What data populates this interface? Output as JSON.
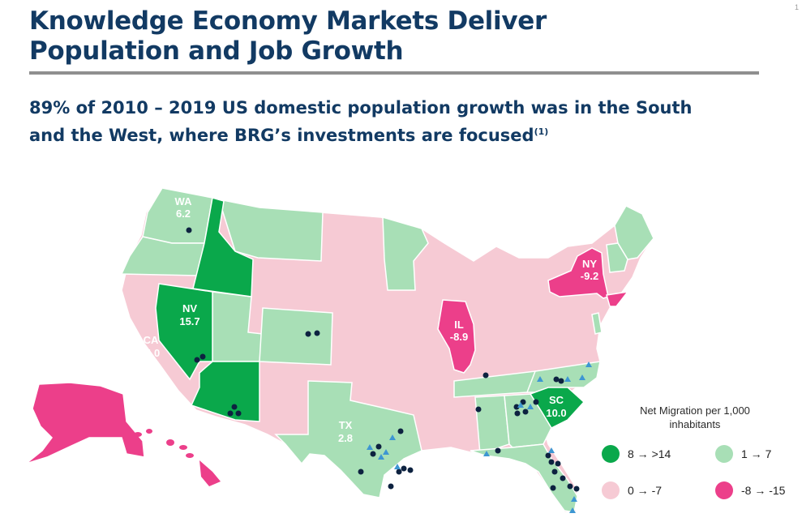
{
  "page_number": "1",
  "title": {
    "line1": "Knowledge Economy Markets Deliver",
    "line2": "Population and Job Growth"
  },
  "subtitle": {
    "line1": "89% of 2010 – 2019 US domestic population growth was in the South",
    "line2": "and the West, where BRG’s investments are focused",
    "footnote": "(1)"
  },
  "colors": {
    "dark_green": "#0aa84b",
    "light_green": "#a8dfb6",
    "light_pink": "#f6cad4",
    "magenta": "#ec3f8a",
    "dot": "#0d2240",
    "triangle": "#3d96d2"
  },
  "state_labels": [
    {
      "code": "WA",
      "value": "6.2"
    },
    {
      "code": "NV",
      "value": "15.7"
    },
    {
      "code": "CA",
      "value": "-4.0"
    },
    {
      "code": "IL",
      "value": "-8.9"
    },
    {
      "code": "NY",
      "value": "-9.2"
    },
    {
      "code": "TX",
      "value": "2.8"
    },
    {
      "code": "SC",
      "value": "10.0"
    }
  ],
  "legend": {
    "title": "Net Migration per 1,000 inhabitants",
    "items": [
      {
        "label": "8 → >14",
        "color": "#0aa84b"
      },
      {
        "label": "1 → 7",
        "color": "#a8dfb6"
      },
      {
        "label": "0 → -7",
        "color": "#f6cad4"
      },
      {
        "label": "-8 → -15",
        "color": "#ec3f8a"
      }
    ]
  }
}
